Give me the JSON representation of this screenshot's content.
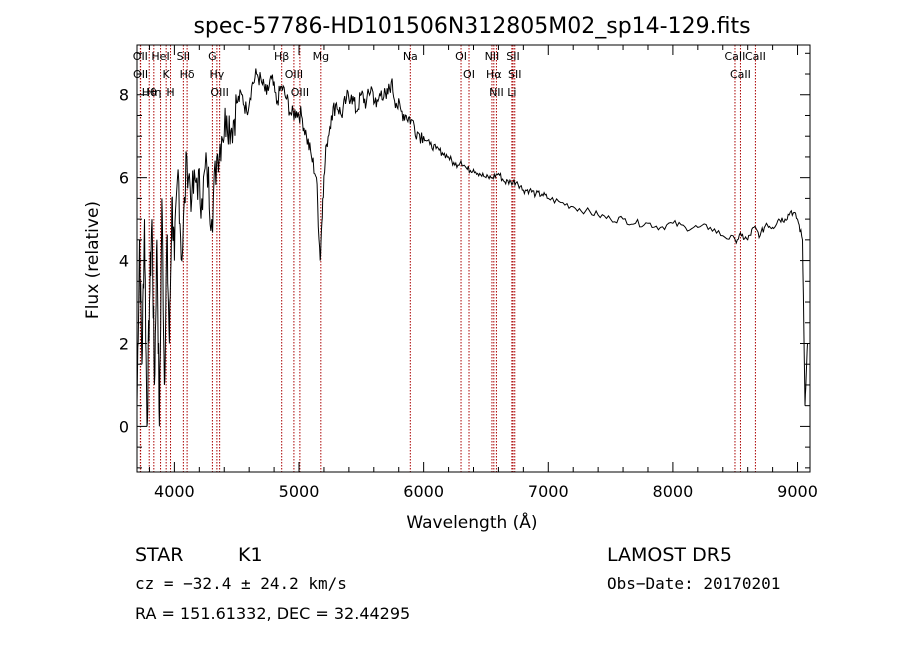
{
  "chart_data": {
    "type": "line",
    "title": "spec-57786-HD101506N312805M02_sp14-129.fits",
    "xlabel": "Wavelength (Å)",
    "ylabel": "Flux (relative)",
    "xlim": [
      3700,
      9100
    ],
    "ylim": [
      -1.1,
      9.2
    ],
    "x_ticks": [
      "4000",
      "5000",
      "6000",
      "7000",
      "8000",
      "9000"
    ],
    "y_ticks": [
      "0",
      "2",
      "4",
      "6",
      "8"
    ],
    "x_tick_values": [
      4000,
      5000,
      6000,
      7000,
      8000,
      9000
    ],
    "y_tick_values": [
      0,
      2,
      4,
      6,
      8
    ],
    "grid": false,
    "series_color": "#000000",
    "line_color": "#aa0000",
    "series": [
      {
        "x": [
          3700,
          3720,
          3740,
          3760,
          3780,
          3800,
          3820,
          3840,
          3860,
          3880,
          3900,
          3920,
          3940,
          3960,
          3980,
          4000,
          4030,
          4060,
          4100,
          4140,
          4180,
          4220,
          4260,
          4300,
          4340,
          4380,
          4420,
          4460,
          4500,
          4540,
          4580,
          4620,
          4660,
          4700,
          4740,
          4780,
          4820,
          4860,
          4900,
          4940,
          4980,
          5020,
          5060,
          5100,
          5140,
          5170,
          5190,
          5220,
          5260,
          5300,
          5340,
          5380,
          5420,
          5460,
          5500,
          5540,
          5580,
          5620,
          5660,
          5700,
          5740,
          5780,
          5820,
          5860,
          5900,
          5950,
          6000,
          6050,
          6100,
          6150,
          6200,
          6250,
          6300,
          6350,
          6400,
          6450,
          6500,
          6550,
          6600,
          6650,
          6700,
          6750,
          6800,
          6850,
          6900,
          6950,
          7000,
          7100,
          7200,
          7300,
          7400,
          7500,
          7600,
          7700,
          7800,
          7900,
          8000,
          8100,
          8200,
          8300,
          8400,
          8500,
          8550,
          8600,
          8650,
          8700,
          8750,
          8800,
          8850,
          8900,
          8950,
          9000,
          9040,
          9060,
          9080
        ],
        "values": [
          0.5,
          4.5,
          1.5,
          5.0,
          0.0,
          3.0,
          5.0,
          1.0,
          4.5,
          0.0,
          5.5,
          1.0,
          4.5,
          2.0,
          5.5,
          4.0,
          6.2,
          4.0,
          6.5,
          5.5,
          6.0,
          5.5,
          6.3,
          5.0,
          6.5,
          7.0,
          7.5,
          7.2,
          7.8,
          8.0,
          7.6,
          8.2,
          8.5,
          8.3,
          8.0,
          8.4,
          7.8,
          8.2,
          7.9,
          7.5,
          7.6,
          7.5,
          7.0,
          6.5,
          6.0,
          4.0,
          5.5,
          6.8,
          7.5,
          7.8,
          7.5,
          7.9,
          8.0,
          7.6,
          8.0,
          7.8,
          8.2,
          7.7,
          8.1,
          7.9,
          8.3,
          7.8,
          7.6,
          7.5,
          7.4,
          7.1,
          7.0,
          6.8,
          6.7,
          6.6,
          6.5,
          6.3,
          6.4,
          6.2,
          6.2,
          6.1,
          6.0,
          6.0,
          6.1,
          5.9,
          5.9,
          5.9,
          5.7,
          5.7,
          5.6,
          5.6,
          5.5,
          5.4,
          5.3,
          5.2,
          5.1,
          5.0,
          5.0,
          4.9,
          4.9,
          4.8,
          4.9,
          4.8,
          4.8,
          4.8,
          4.6,
          4.5,
          4.6,
          4.5,
          4.8,
          4.6,
          4.9,
          4.8,
          5.0,
          5.0,
          5.2,
          5.0,
          4.5,
          0.5,
          2.0
        ]
      }
    ],
    "line_ids": [
      {
        "label": "Hθ",
        "x": 3798
      },
      {
        "label": "OII",
        "x": 3727
      },
      {
        "label": "OII",
        "x": 3729
      },
      {
        "label": "Hη",
        "x": 3835
      },
      {
        "label": "HeI",
        "x": 3889
      },
      {
        "label": "K",
        "x": 3934
      },
      {
        "label": "H",
        "x": 3969
      },
      {
        "label": "Hδ",
        "x": 4102
      },
      {
        "label": "SII",
        "x": 4072
      },
      {
        "label": "OIII",
        "x": 4363
      },
      {
        "label": "Hγ",
        "x": 4341
      },
      {
        "label": "G",
        "x": 4305
      },
      {
        "label": "Hβ",
        "x": 4861
      },
      {
        "label": "OIII",
        "x": 4959
      },
      {
        "label": "OIII",
        "x": 5007
      },
      {
        "label": "Mg",
        "x": 5175
      },
      {
        "label": "Na",
        "x": 5893
      },
      {
        "label": "OI",
        "x": 6300
      },
      {
        "label": "OI",
        "x": 6364
      },
      {
        "label": "Hα",
        "x": 6563
      },
      {
        "label": "NII",
        "x": 6548
      },
      {
        "label": "NII",
        "x": 6584
      },
      {
        "label": "SII",
        "x": 6717
      },
      {
        "label": "SII",
        "x": 6731
      },
      {
        "label": "Li",
        "x": 6708
      },
      {
        "label": "CaII",
        "x": 8542
      },
      {
        "label": "CaII",
        "x": 8498
      },
      {
        "label": "CaII",
        "x": 8662
      }
    ]
  },
  "info": {
    "object_class": "STAR",
    "subclass": "K1",
    "survey": "LAMOST DR5",
    "cz": "cz = −32.4 ± 24.2 km/s",
    "obs_date": "Obs−Date: 20170201",
    "coords": "RA = 151.61332, DEC =  32.44295"
  }
}
